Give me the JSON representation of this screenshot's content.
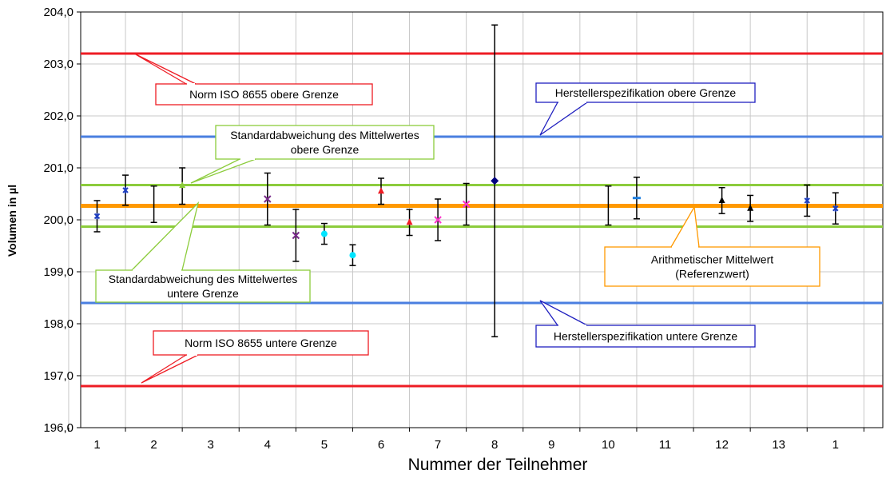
{
  "chart_data": {
    "type": "scatter",
    "title": "",
    "xlabel": "Nummer der Teilnehmer",
    "ylabel": "Volumen in µl",
    "ylim": [
      196.0,
      204.0
    ],
    "xlim": [
      0.5,
      13.5
    ],
    "grid": true,
    "y_ticks": [
      "196,0",
      "197,0",
      "198,0",
      "199,0",
      "200,0",
      "201,0",
      "202,0",
      "203,0",
      "204,0"
    ],
    "x_tick_labels": [
      "1",
      "2",
      "3",
      "4",
      "5",
      "6",
      "7",
      "8",
      "9",
      "10",
      "11",
      "12",
      "13",
      "1"
    ],
    "reference_lines": [
      {
        "name": "Norm ISO 8655 obere Grenze",
        "y": 203.2,
        "color": "#ee1c24"
      },
      {
        "name": "Norm ISO 8655 untere Grenze",
        "y": 196.8,
        "color": "#ee1c24"
      },
      {
        "name": "Herstellerspezifikation obere Grenze",
        "y": 201.6,
        "color": "#4a7fe0"
      },
      {
        "name": "Herstellerspezifikation untere Grenze",
        "y": 198.4,
        "color": "#4a7fe0"
      },
      {
        "name": "Standardabweichung des Mittelwertes obere Grenze",
        "y": 200.67,
        "color": "#8ccc3c"
      },
      {
        "name": "Standardabweichung des Mittelwertes untere Grenze",
        "y": 199.87,
        "color": "#8ccc3c"
      },
      {
        "name": "Arithmetischer Mittelwert (Referenzwert)",
        "y": 200.27,
        "color": "#ff9900"
      }
    ],
    "points": [
      {
        "x": 1.0,
        "y": 200.07,
        "low": 199.77,
        "high": 200.37,
        "marker": "star",
        "color": "#1f3fbf"
      },
      {
        "x": 1.5,
        "y": 200.57,
        "low": 200.28,
        "high": 200.86,
        "marker": "star",
        "color": "#1f3fbf"
      },
      {
        "x": 2.0,
        "y": 200.3,
        "low": 199.95,
        "high": 200.65,
        "marker": "none",
        "color": "#000000"
      },
      {
        "x": 2.5,
        "y": 200.66,
        "low": 200.3,
        "high": 201.0,
        "marker": "triangle",
        "color": "#8ccc3c"
      },
      {
        "x": 4.0,
        "y": 200.4,
        "low": 199.9,
        "high": 200.9,
        "marker": "x",
        "color": "#7b2c8c"
      },
      {
        "x": 4.5,
        "y": 199.7,
        "low": 199.2,
        "high": 200.2,
        "marker": "x",
        "color": "#7b2c8c"
      },
      {
        "x": 5.0,
        "y": 199.73,
        "low": 199.53,
        "high": 199.93,
        "marker": "circle",
        "color": "#00e5ff"
      },
      {
        "x": 5.5,
        "y": 199.32,
        "low": 199.12,
        "high": 199.52,
        "marker": "circle",
        "color": "#00e5ff"
      },
      {
        "x": 6.0,
        "y": 200.55,
        "low": 200.3,
        "high": 200.8,
        "marker": "triangle",
        "color": "#ee1c24"
      },
      {
        "x": 6.5,
        "y": 199.95,
        "low": 199.7,
        "high": 200.2,
        "marker": "triangle",
        "color": "#ee1c24"
      },
      {
        "x": 7.0,
        "y": 200.0,
        "low": 199.6,
        "high": 200.4,
        "marker": "x",
        "color": "#ff33cc"
      },
      {
        "x": 7.5,
        "y": 200.3,
        "low": 199.9,
        "high": 200.7,
        "marker": "x",
        "color": "#ff33cc"
      },
      {
        "x": 8.0,
        "y": 200.75,
        "low": 197.75,
        "high": 203.75,
        "marker": "diamond",
        "color": "#000080"
      },
      {
        "x": 10.0,
        "y": 200.27,
        "low": 199.9,
        "high": 200.65,
        "marker": "none",
        "color": "#000000"
      },
      {
        "x": 10.5,
        "y": 200.42,
        "low": 200.02,
        "high": 200.82,
        "marker": "dash",
        "color": "#1f7fe0"
      },
      {
        "x": 12.0,
        "y": 200.37,
        "low": 200.12,
        "high": 200.62,
        "marker": "triangle",
        "color": "#000000"
      },
      {
        "x": 12.5,
        "y": 200.22,
        "low": 199.97,
        "high": 200.47,
        "marker": "triangle",
        "color": "#000000"
      },
      {
        "x": 13.5,
        "y": 200.37,
        "low": 200.07,
        "high": 200.67,
        "marker": "star",
        "color": "#1f3fbf"
      },
      {
        "x": 14.0,
        "y": 200.22,
        "low": 199.92,
        "high": 200.52,
        "marker": "star",
        "color": "#1f3fbf"
      }
    ],
    "annotations": [
      {
        "key": "iso_oben",
        "lines": [
          "Norm ISO 8655 obere Grenze"
        ],
        "border": "#ee1c24"
      },
      {
        "key": "iso_unten",
        "lines": [
          "Norm ISO 8655 untere Grenze"
        ],
        "border": "#ee1c24"
      },
      {
        "key": "hs_oben",
        "lines": [
          "Herstellerspezifikation obere Grenze"
        ],
        "border": "#1f1fbf"
      },
      {
        "key": "hs_unten",
        "lines": [
          "Herstellerspezifikation untere Grenze"
        ],
        "border": "#1f1fbf"
      },
      {
        "key": "sd_oben",
        "lines": [
          "Standardabweichung des Mittelwertes",
          "obere Grenze"
        ],
        "border": "#8ccc3c"
      },
      {
        "key": "sd_unten",
        "lines": [
          "Standardabweichung des Mittelwertes",
          "untere Grenze"
        ],
        "border": "#8ccc3c"
      },
      {
        "key": "mittel",
        "lines": [
          "Arithmetischer Mittelwert",
          "(Referenzwert)"
        ],
        "border": "#ff9900"
      }
    ]
  }
}
